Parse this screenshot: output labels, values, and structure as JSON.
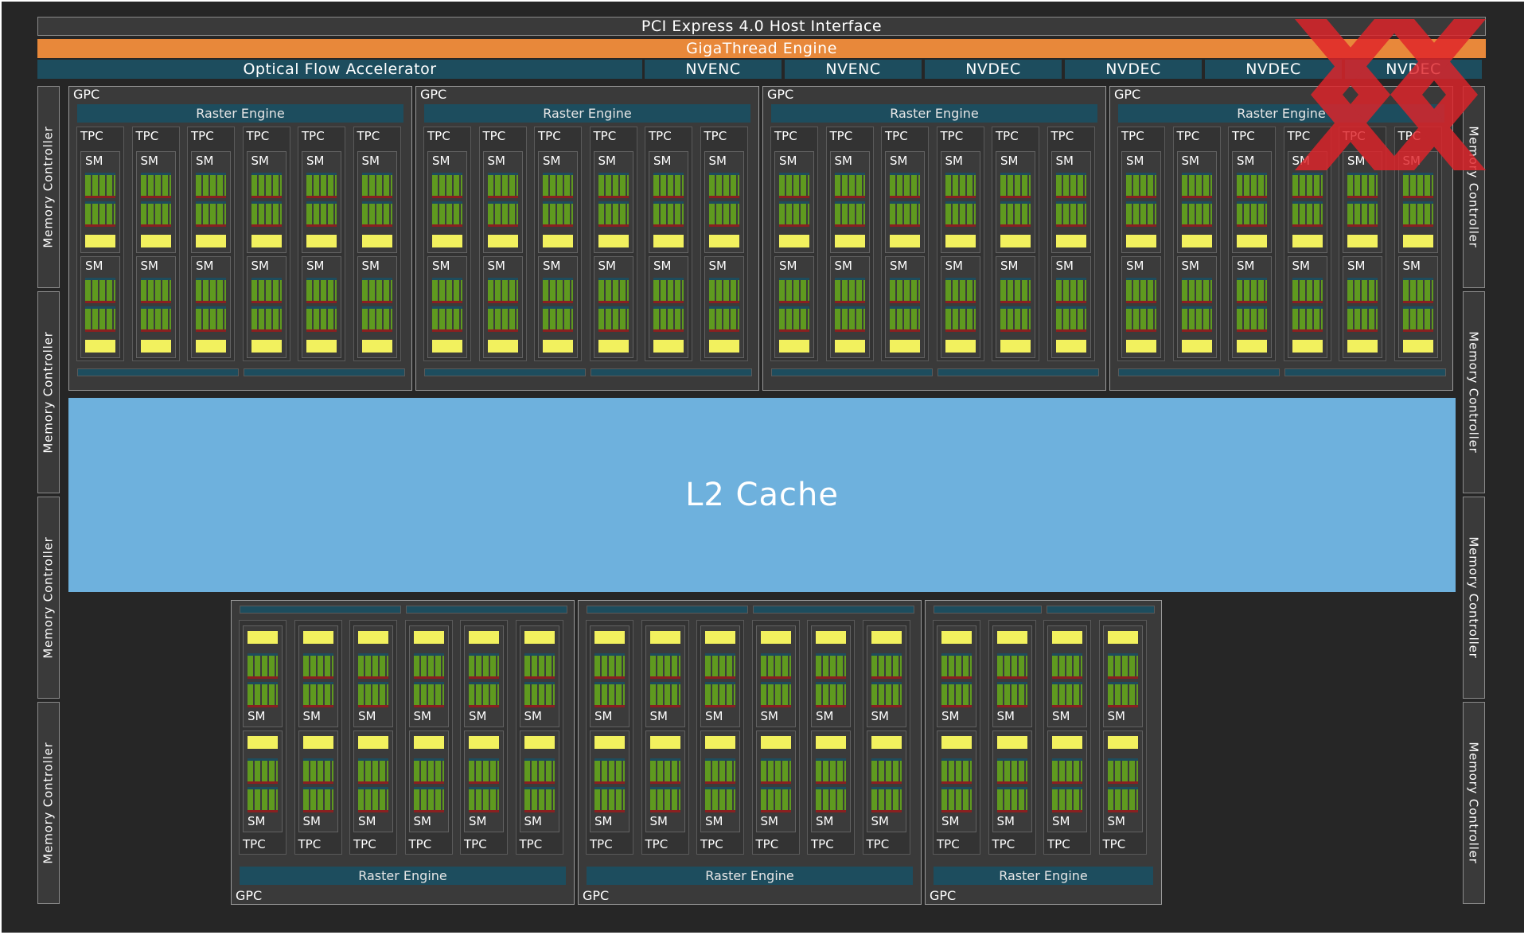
{
  "top": {
    "pcie_label": "PCI Express 4.0 Host Interface",
    "gigathread_label": "GigaThread Engine",
    "optical_flow_label": "Optical Flow Accelerator",
    "media_units": [
      "NVENC",
      "NVENC",
      "NVDEC",
      "NVDEC",
      "NVDEC",
      "NVDEC"
    ]
  },
  "memory_controller_label": "Memory Controller",
  "memory_controllers": {
    "left_count": 4,
    "right_count": 4
  },
  "l2_label": "L2 Cache",
  "gpc": {
    "label": "GPC",
    "raster_label": "Raster Engine",
    "tpc_label": "TPC",
    "sm_label": "SM"
  },
  "gpc_rows": [
    {
      "position": "top",
      "tpcs_per_gpc": [
        6,
        6,
        6,
        6
      ]
    },
    {
      "position": "bottom",
      "tpcs_per_gpc": [
        6,
        6,
        4
      ]
    }
  ],
  "colors": {
    "background": "#262626",
    "panel": "#3a3a3a",
    "gigathread": "#e8883a",
    "teal_units": "#1d4d5e",
    "l2_cache": "#6eb1dd",
    "tensor_yellow": "#f2f15e",
    "cuda_green": "#5f9a1f",
    "watermark_red": "#e0242a"
  },
  "watermark_icon": "red-xx-logo"
}
